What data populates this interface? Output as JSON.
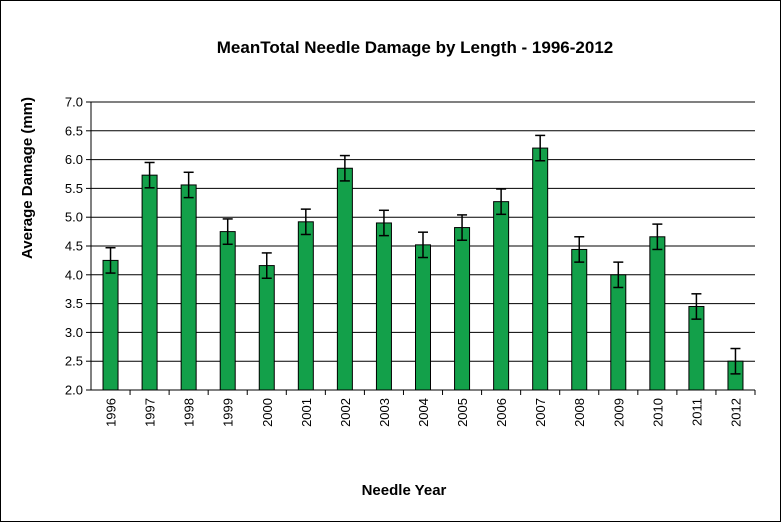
{
  "chart_data": {
    "type": "bar",
    "title": "MeanTotal Needle Damage by Length - 1996-2012",
    "xlabel": "Needle Year",
    "ylabel": "Average Damage (mm)",
    "ylim": [
      2.0,
      7.0
    ],
    "ytick_step": 0.5,
    "grid": true,
    "categories": [
      "1996",
      "1997",
      "1998",
      "1999",
      "2000",
      "2001",
      "2002",
      "2003",
      "2004",
      "2005",
      "2006",
      "2007",
      "2008",
      "2009",
      "2010",
      "2011",
      "2012"
    ],
    "values": [
      4.25,
      5.73,
      5.56,
      4.75,
      4.16,
      4.92,
      5.85,
      4.9,
      4.52,
      4.82,
      5.27,
      6.2,
      4.44,
      4.0,
      4.66,
      3.45,
      2.5
    ],
    "error": [
      0.22,
      0.22,
      0.22,
      0.22,
      0.22,
      0.22,
      0.22,
      0.22,
      0.22,
      0.22,
      0.22,
      0.22,
      0.22,
      0.22,
      0.22,
      0.22,
      0.22
    ],
    "bar_color": "#13a04a",
    "bar_edge_color": "#000000"
  }
}
